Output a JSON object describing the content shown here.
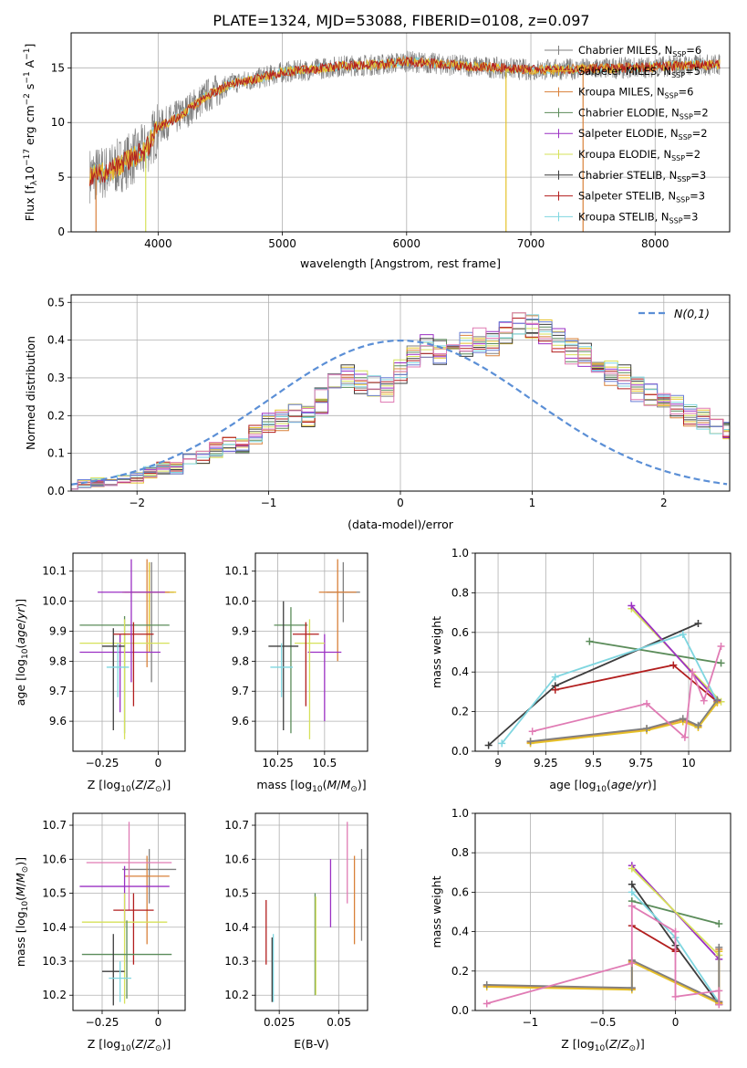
{
  "figure": {
    "title": "PLATE=1324, MJD=53088, FIBERID=0108, z=0.097"
  },
  "models": [
    {
      "name": "Chabrier MILES",
      "nssp": "6",
      "color": "#808080"
    },
    {
      "name": "Salpeter MILES",
      "nssp": "5",
      "color": "#e6c229"
    },
    {
      "name": "Kroupa MILES",
      "nssp": "6",
      "color": "#d9813a"
    },
    {
      "name": "Chabrier ELODIE",
      "nssp": "2",
      "color": "#5b8c5a"
    },
    {
      "name": "Salpeter ELODIE",
      "nssp": "2",
      "color": "#9b30c4"
    },
    {
      "name": "Kroupa ELODIE",
      "nssp": "2",
      "color": "#d6e15a"
    },
    {
      "name": "Chabrier STELIB",
      "nssp": "3",
      "color": "#3d3d3d"
    },
    {
      "name": "Salpeter STELIB",
      "nssp": "3",
      "color": "#b21e1e"
    },
    {
      "name": "Kroupa STELIB",
      "nssp": "3",
      "color": "#7fd6e0"
    }
  ],
  "chart_data": [
    {
      "id": "spectrum",
      "type": "line",
      "xlabel": "wavelength [Angstrom, rest frame]",
      "ylabel": "Flux [f_λ 10^-17 erg cm^-2 s^-1 A^-1]",
      "xlim": [
        3300,
        8600
      ],
      "ylim": [
        0,
        18.2
      ],
      "xticks": [
        4000,
        5000,
        6000,
        7000,
        8000
      ],
      "yticks": [
        0,
        5,
        10,
        15
      ],
      "legend": "right",
      "description": "observed spectrum (grey) with overplotted fits; flux rises from ~5 at 3500 A to ~15 near 5000 A and stays ~15 to 8500 A",
      "spectrum_profile": {
        "x": [
          3450,
          3600,
          3800,
          3900,
          4000,
          4200,
          4400,
          4600,
          4800,
          5000,
          5200,
          5500,
          5800,
          6000,
          6300,
          6600,
          7000,
          7400,
          7800,
          8200,
          8500
        ],
        "y": [
          5.2,
          5.5,
          6.8,
          7.5,
          9.5,
          10.8,
          12.5,
          13.6,
          14.0,
          14.6,
          14.8,
          15.2,
          15.3,
          15.6,
          15.3,
          15.1,
          14.8,
          14.9,
          15.0,
          15.2,
          15.3
        ]
      }
    },
    {
      "id": "residuals",
      "type": "bar",
      "xlabel": "(data-model)/error",
      "ylabel": "Normed distribution",
      "xlim": [
        -2.5,
        2.5
      ],
      "ylim": [
        0,
        0.52
      ],
      "xticks": [
        -2,
        -1,
        0,
        1,
        2
      ],
      "yticks": [
        0.0,
        0.1,
        0.2,
        0.3,
        0.4,
        0.5
      ],
      "legend_label": "N(0,1)",
      "bin_width": 0.1,
      "base_hist": [
        0.015,
        0.02,
        0.025,
        0.025,
        0.03,
        0.035,
        0.05,
        0.06,
        0.06,
        0.08,
        0.09,
        0.11,
        0.12,
        0.12,
        0.15,
        0.18,
        0.19,
        0.2,
        0.2,
        0.24,
        0.28,
        0.3,
        0.29,
        0.28,
        0.27,
        0.32,
        0.36,
        0.38,
        0.37,
        0.36,
        0.39,
        0.4,
        0.39,
        0.42,
        0.45,
        0.44,
        0.42,
        0.4,
        0.37,
        0.36,
        0.33,
        0.31,
        0.3,
        0.27,
        0.25,
        0.24,
        0.22,
        0.2,
        0.19,
        0.17,
        0.16,
        0.14,
        0.13,
        0.1,
        0.09,
        0.08,
        0.07,
        0.05,
        0.045,
        0.04,
        0.035,
        0.03,
        0.025,
        0.02,
        0.02,
        0.018,
        0.016,
        0.015,
        0.014,
        0.013,
        0.012
      ]
    },
    {
      "id": "age_vs_Z",
      "type": "scatter",
      "xlabel": "Z [log10(Z/Z_sun)]",
      "ylabel": "age [log10(age/yr)]",
      "xlim": [
        -0.38,
        0.12
      ],
      "ylim": [
        9.5,
        10.16
      ],
      "xticks": [
        -0.25,
        0.0
      ],
      "yticks": [
        9.6,
        9.7,
        9.8,
        9.9,
        10.0,
        10.1
      ],
      "points": [
        {
          "model": 0,
          "x": -0.03,
          "y": 10.03,
          "xerr": 0.1,
          "yerr_lo": 0.3,
          "yerr_hi": 0.1
        },
        {
          "model": 1,
          "x": -0.04,
          "y": 10.03,
          "xerr": 0.12,
          "yerr_lo": 0.2,
          "yerr_hi": 0.1
        },
        {
          "model": 2,
          "x": -0.05,
          "y": 10.03,
          "xerr": 0.1,
          "yerr_lo": 0.25,
          "yerr_hi": 0.11
        },
        {
          "model": 3,
          "x": -0.15,
          "y": 9.92,
          "xerr": 0.2,
          "yerr_lo": 0.36,
          "yerr_hi": 0.03
        },
        {
          "model": 4,
          "x": -0.17,
          "y": 9.83,
          "xerr": 0.18,
          "yerr_lo": 0.2,
          "yerr_hi": 0.06
        },
        {
          "model": 5,
          "x": -0.15,
          "y": 9.86,
          "xerr": 0.2,
          "yerr_lo": 0.32,
          "yerr_hi": 0.08
        },
        {
          "model": 6,
          "x": -0.2,
          "y": 9.85,
          "xerr": 0.05,
          "yerr_lo": 0.28,
          "yerr_hi": 0.06
        },
        {
          "model": 7,
          "x": -0.11,
          "y": 9.89,
          "xerr": 0.09,
          "yerr_lo": 0.24,
          "yerr_hi": 0.04
        },
        {
          "model": 8,
          "x": -0.18,
          "y": 9.78,
          "xerr": 0.05,
          "yerr_lo": 0.1,
          "yerr_hi": 0.08
        },
        {
          "model": 4,
          "x": -0.12,
          "y": 10.03,
          "xerr": 0.15,
          "yerr_lo": 0.3,
          "yerr_hi": 0.11
        }
      ]
    },
    {
      "id": "age_vs_mass",
      "type": "scatter",
      "xlabel": "mass [log10(M/M_sun)]",
      "ylabel": "",
      "xlim": [
        10.13,
        10.73
      ],
      "ylim": [
        9.5,
        10.16
      ],
      "xticks": [
        10.25,
        10.5
      ],
      "yticks": [
        9.6,
        9.7,
        9.8,
        9.9,
        10.0,
        10.1
      ],
      "points": [
        {
          "model": 0,
          "x": 10.6,
          "y": 10.03,
          "xerr": 0.09,
          "yerr_lo": 0.1,
          "yerr_hi": 0.1
        },
        {
          "model": 2,
          "x": 10.57,
          "y": 10.03,
          "xerr": 0.1,
          "yerr_lo": 0.23,
          "yerr_hi": 0.11
        },
        {
          "model": 4,
          "x": 10.5,
          "y": 9.83,
          "xerr": 0.09,
          "yerr_lo": 0.23,
          "yerr_hi": 0.06
        },
        {
          "model": 3,
          "x": 10.32,
          "y": 9.92,
          "xerr": 0.09,
          "yerr_lo": 0.36,
          "yerr_hi": 0.06
        },
        {
          "model": 5,
          "x": 10.42,
          "y": 9.86,
          "xerr": 0.08,
          "yerr_lo": 0.32,
          "yerr_hi": 0.08
        },
        {
          "model": 6,
          "x": 10.28,
          "y": 9.85,
          "xerr": 0.08,
          "yerr_lo": 0.28,
          "yerr_hi": 0.15
        },
        {
          "model": 7,
          "x": 10.4,
          "y": 9.89,
          "xerr": 0.07,
          "yerr_lo": 0.24,
          "yerr_hi": 0.04
        },
        {
          "model": 8,
          "x": 10.27,
          "y": 9.78,
          "xerr": 0.06,
          "yerr_lo": 0.1,
          "yerr_hi": 0.08
        }
      ]
    },
    {
      "id": "weight_vs_age",
      "type": "line",
      "xlabel": "age [log10(age/yr)]",
      "ylabel": "mass weight",
      "xlim": [
        8.88,
        10.22
      ],
      "ylim": [
        0.0,
        1.0
      ],
      "xticks": [
        9.0,
        9.25,
        9.5,
        9.75,
        10.0
      ],
      "yticks": [
        0.0,
        0.2,
        0.4,
        0.6,
        0.8,
        1.0
      ],
      "series": [
        {
          "model": 3,
          "x": [
            9.48,
            10.17
          ],
          "y": [
            0.555,
            0.445
          ]
        },
        {
          "model": 6,
          "x": [
            8.95,
            9.3,
            10.05
          ],
          "y": [
            0.03,
            0.33,
            0.645
          ]
        },
        {
          "model": 5,
          "x": [
            9.7,
            10.17
          ],
          "y": [
            0.72,
            0.25
          ]
        },
        {
          "model": 4,
          "x": [
            9.7,
            10.15
          ],
          "y": [
            0.735,
            0.255
          ]
        },
        {
          "model": 7,
          "x": [
            9.3,
            9.92,
            10.15
          ],
          "y": [
            0.31,
            0.435,
            0.25
          ]
        },
        {
          "model": 8,
          "x": [
            9.02,
            9.3,
            9.97,
            10.15
          ],
          "y": [
            0.04,
            0.375,
            0.59,
            0.25
          ]
        },
        {
          "model": 2,
          "x": [
            9.17,
            9.78,
            9.97,
            10.05,
            10.15
          ],
          "y": [
            0.045,
            0.11,
            0.16,
            0.125,
            0.25
          ]
        },
        {
          "model": 1,
          "x": [
            9.17,
            9.78,
            9.97,
            10.05,
            10.15
          ],
          "y": [
            0.04,
            0.105,
            0.15,
            0.12,
            0.245
          ]
        },
        {
          "model": 0,
          "x": [
            9.17,
            9.78,
            9.97,
            10.05,
            10.15
          ],
          "y": [
            0.05,
            0.115,
            0.165,
            0.13,
            0.26
          ]
        },
        {
          "model": 9,
          "x": [
            9.18,
            9.78,
            9.98,
            10.02,
            10.08,
            10.17
          ],
          "y": [
            0.1,
            0.24,
            0.07,
            0.4,
            0.255,
            0.53
          ]
        }
      ]
    },
    {
      "id": "mass_vs_Z",
      "type": "scatter",
      "xlabel": "Z [log10(Z/Z_sun)]",
      "ylabel": "mass [log10(M/M_sun)]",
      "xlim": [
        -0.38,
        0.12
      ],
      "ylim": [
        10.155,
        10.735
      ],
      "xticks": [
        -0.25,
        0.0
      ],
      "yticks": [
        10.2,
        10.3,
        10.4,
        10.5,
        10.6,
        10.7
      ],
      "points": [
        {
          "model": 0,
          "x": -0.04,
          "y": 10.57,
          "xerr": 0.12,
          "yerr_lo": 0.1,
          "yerr_hi": 0.06
        },
        {
          "model": 2,
          "x": -0.05,
          "y": 10.55,
          "xerr": 0.1,
          "yerr_lo": 0.2,
          "yerr_hi": 0.06
        },
        {
          "model": 9,
          "x": -0.13,
          "y": 10.59,
          "xerr": 0.19,
          "yerr_lo": 0.14,
          "yerr_hi": 0.12
        },
        {
          "model": 4,
          "x": -0.15,
          "y": 10.52,
          "xerr": 0.2,
          "yerr_lo": 0.12,
          "yerr_hi": 0.06
        },
        {
          "model": 7,
          "x": -0.11,
          "y": 10.45,
          "xerr": 0.09,
          "yerr_lo": 0.16,
          "yerr_hi": 0.05
        },
        {
          "model": 5,
          "x": -0.15,
          "y": 10.415,
          "xerr": 0.19,
          "yerr_lo": 0.24,
          "yerr_hi": 0.085
        },
        {
          "model": 3,
          "x": -0.14,
          "y": 10.32,
          "xerr": 0.2,
          "yerr_lo": 0.13,
          "yerr_hi": 0.1
        },
        {
          "model": 6,
          "x": -0.2,
          "y": 10.27,
          "xerr": 0.05,
          "yerr_lo": 0.1,
          "yerr_hi": 0.11
        },
        {
          "model": 8,
          "x": -0.17,
          "y": 10.25,
          "xerr": 0.05,
          "yerr_lo": 0.07,
          "yerr_hi": 0.05
        }
      ]
    },
    {
      "id": "mass_vs_ebv",
      "type": "scatter",
      "xlabel": "E(B-V)",
      "ylabel": "",
      "xlim": [
        0.015,
        0.062
      ],
      "ylim": [
        10.155,
        10.735
      ],
      "xticks": [
        0.025,
        0.05
      ],
      "yticks": [
        10.2,
        10.3,
        10.4,
        10.5,
        10.6,
        10.7
      ],
      "vlines": [
        {
          "model": 7,
          "x": 0.0195,
          "lo": 10.29,
          "hi": 10.48
        },
        {
          "model": 6,
          "x": 0.022,
          "lo": 10.18,
          "hi": 10.37
        },
        {
          "model": 8,
          "x": 0.0225,
          "lo": 10.18,
          "hi": 10.38
        },
        {
          "model": 3,
          "x": 0.04,
          "lo": 10.2,
          "hi": 10.5
        },
        {
          "model": 5,
          "x": 0.0403,
          "lo": 10.2,
          "hi": 10.49
        },
        {
          "model": 4,
          "x": 0.0465,
          "lo": 10.4,
          "hi": 10.6
        },
        {
          "model": 9,
          "x": 0.0535,
          "lo": 10.47,
          "hi": 10.71
        },
        {
          "model": 2,
          "x": 0.0565,
          "lo": 10.35,
          "hi": 10.61
        },
        {
          "model": 0,
          "x": 0.0595,
          "lo": 10.36,
          "hi": 10.63
        }
      ]
    },
    {
      "id": "weight_vs_Z",
      "type": "line",
      "xlabel": "Z [log10(Z/Z_sun)]",
      "ylabel": "mass weight",
      "xlim": [
        -1.38,
        0.38
      ],
      "ylim": [
        0.0,
        1.0
      ],
      "xticks": [
        -1.0,
        -0.5,
        0.0
      ],
      "yticks": [
        0.0,
        0.2,
        0.4,
        0.6,
        0.8,
        1.0
      ],
      "series": [
        {
          "model": 3,
          "x": [
            -0.3,
            0.3
          ],
          "y": [
            0.555,
            0.44
          ]
        },
        {
          "model": 6,
          "x": [
            -0.3,
            0.0,
            0.3
          ],
          "y": [
            0.64,
            0.33,
            0.03
          ]
        },
        {
          "model": 4,
          "x": [
            -0.3,
            0.3
          ],
          "y": [
            0.735,
            0.26
          ]
        },
        {
          "model": 5,
          "x": [
            -0.3,
            0.3
          ],
          "y": [
            0.72,
            0.28
          ]
        },
        {
          "model": 7,
          "x": [
            -0.3,
            0.0,
            0.0
          ],
          "y": [
            0.43,
            0.3,
            0.31
          ]
        },
        {
          "model": 8,
          "x": [
            -0.3,
            0.0,
            0.3
          ],
          "y": [
            0.6,
            0.37,
            0.04
          ]
        },
        {
          "model": 2,
          "x": [
            -1.3,
            -0.3,
            -0.3,
            0.3,
            0.3
          ],
          "y": [
            0.125,
            0.11,
            0.25,
            0.04,
            0.31
          ]
        },
        {
          "model": 1,
          "x": [
            -1.3,
            -0.3,
            -0.3,
            0.3,
            0.3
          ],
          "y": [
            0.12,
            0.105,
            0.245,
            0.035,
            0.3
          ]
        },
        {
          "model": 0,
          "x": [
            -1.3,
            -0.3,
            -0.3,
            0.3,
            0.3
          ],
          "y": [
            0.13,
            0.115,
            0.255,
            0.045,
            0.32
          ]
        },
        {
          "model": 9,
          "x": [
            -1.3,
            -0.3,
            -0.3,
            0.0,
            0.0,
            0.3,
            0.3
          ],
          "y": [
            0.035,
            0.24,
            0.53,
            0.4,
            0.07,
            0.1,
            0.03
          ]
        }
      ]
    }
  ],
  "extra_color": "#e07bb4"
}
